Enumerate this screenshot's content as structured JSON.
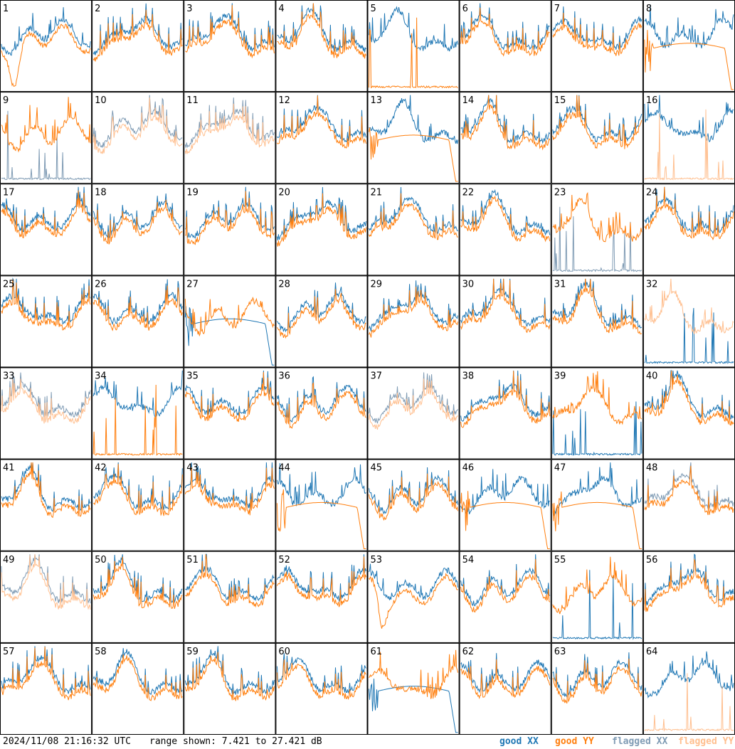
{
  "colors": {
    "good_xx": "#1f77b4",
    "good_yy": "#ff7f0e",
    "flagged_xx": "#7f9bb4",
    "flagged_yy": "#ffbf8f"
  },
  "footer": {
    "timestamp": "2024/11/08 21:16:32 UTC",
    "range": "range shown: 7.421 to 27.421 dB"
  },
  "legend": {
    "good_xx": "good XX",
    "good_yy": "good YY",
    "flagged_xx": "flagged XX",
    "flagged_yy": "flagged YY"
  },
  "chart_data": {
    "type": "line",
    "grid": "8x8 small multiples",
    "range_db": [
      7.421,
      27.421
    ],
    "panels": [
      {
        "id": "1",
        "xx": "good",
        "yy": "good",
        "note": "YY dips near start, flat mid"
      },
      {
        "id": "2",
        "xx": "good",
        "yy": "good"
      },
      {
        "id": "3",
        "xx": "good",
        "yy": "good"
      },
      {
        "id": "4",
        "xx": "good",
        "yy": "good"
      },
      {
        "id": "5",
        "xx": "good",
        "yy": "good",
        "note": "YY near floor with sparse spikes"
      },
      {
        "id": "6",
        "xx": "good",
        "yy": "good"
      },
      {
        "id": "7",
        "xx": "good",
        "yy": "good"
      },
      {
        "id": "8",
        "xx": "good",
        "yy": "good",
        "note": "YY smooth arc"
      },
      {
        "id": "9",
        "xx": "flagged",
        "yy": "good"
      },
      {
        "id": "10",
        "xx": "flagged",
        "yy": "flagged"
      },
      {
        "id": "11",
        "xx": "flagged",
        "yy": "flagged"
      },
      {
        "id": "12",
        "xx": "good",
        "yy": "good"
      },
      {
        "id": "13",
        "xx": "good",
        "yy": "good",
        "note": "YY smooth arc, drops at end"
      },
      {
        "id": "14",
        "xx": "good",
        "yy": "good"
      },
      {
        "id": "15",
        "xx": "good",
        "yy": "good"
      },
      {
        "id": "16",
        "xx": "good",
        "yy": "flagged"
      },
      {
        "id": "17",
        "xx": "good",
        "yy": "good"
      },
      {
        "id": "18",
        "xx": "good",
        "yy": "good"
      },
      {
        "id": "19",
        "xx": "good",
        "yy": "good"
      },
      {
        "id": "20",
        "xx": "good",
        "yy": "good"
      },
      {
        "id": "21",
        "xx": "good",
        "yy": "good"
      },
      {
        "id": "22",
        "xx": "good",
        "yy": "good"
      },
      {
        "id": "23",
        "xx": "flagged",
        "yy": "good"
      },
      {
        "id": "24",
        "xx": "good",
        "yy": "good"
      },
      {
        "id": "25",
        "xx": "good",
        "yy": "good"
      },
      {
        "id": "26",
        "xx": "good",
        "yy": "good"
      },
      {
        "id": "27",
        "xx": "good",
        "yy": "good",
        "note": "XX dense low start, smooth arc"
      },
      {
        "id": "28",
        "xx": "good",
        "yy": "good"
      },
      {
        "id": "29",
        "xx": "good",
        "yy": "good"
      },
      {
        "id": "30",
        "xx": "good",
        "yy": "good"
      },
      {
        "id": "31",
        "xx": "good",
        "yy": "good"
      },
      {
        "id": "32",
        "xx": "good",
        "yy": "flagged"
      },
      {
        "id": "33",
        "xx": "flagged",
        "yy": "flagged"
      },
      {
        "id": "34",
        "xx": "good",
        "yy": "good",
        "note": "YY near floor with spikes"
      },
      {
        "id": "35",
        "xx": "good",
        "yy": "good"
      },
      {
        "id": "36",
        "xx": "good",
        "yy": "good"
      },
      {
        "id": "37",
        "xx": "flagged",
        "yy": "flagged"
      },
      {
        "id": "38",
        "xx": "good",
        "yy": "good"
      },
      {
        "id": "39",
        "xx": "good",
        "yy": "good",
        "note": "XX near floor with spikes"
      },
      {
        "id": "40",
        "xx": "good",
        "yy": "good"
      },
      {
        "id": "41",
        "xx": "good",
        "yy": "good"
      },
      {
        "id": "42",
        "xx": "good",
        "yy": "good"
      },
      {
        "id": "43",
        "xx": "good",
        "yy": "good"
      },
      {
        "id": "44",
        "xx": "good",
        "yy": "good",
        "note": "YY smooth arc"
      },
      {
        "id": "45",
        "xx": "good",
        "yy": "good"
      },
      {
        "id": "46",
        "xx": "good",
        "yy": "good",
        "note": "YY smooth arc"
      },
      {
        "id": "47",
        "xx": "good",
        "yy": "good",
        "note": "YY smooth arc"
      },
      {
        "id": "48",
        "xx": "flagged",
        "yy": "good"
      },
      {
        "id": "49",
        "xx": "flagged",
        "yy": "flagged"
      },
      {
        "id": "50",
        "xx": "good",
        "yy": "good"
      },
      {
        "id": "51",
        "xx": "good",
        "yy": "good"
      },
      {
        "id": "52",
        "xx": "good",
        "yy": "good"
      },
      {
        "id": "53",
        "xx": "good",
        "yy": "good",
        "note": "YY deep dip then arc"
      },
      {
        "id": "54",
        "xx": "good",
        "yy": "good"
      },
      {
        "id": "55",
        "xx": "good",
        "yy": "good",
        "note": "XX near floor with spikes"
      },
      {
        "id": "56",
        "xx": "good",
        "yy": "good"
      },
      {
        "id": "57",
        "xx": "good",
        "yy": "good"
      },
      {
        "id": "58",
        "xx": "good",
        "yy": "good"
      },
      {
        "id": "59",
        "xx": "good",
        "yy": "good"
      },
      {
        "id": "60",
        "xx": "good",
        "yy": "good"
      },
      {
        "id": "61",
        "xx": "good",
        "yy": "good",
        "note": "XX dense low start, smooth arc"
      },
      {
        "id": "62",
        "xx": "good",
        "yy": "good"
      },
      {
        "id": "63",
        "xx": "good",
        "yy": "good"
      },
      {
        "id": "64",
        "xx": "good",
        "yy": "flagged"
      }
    ]
  }
}
